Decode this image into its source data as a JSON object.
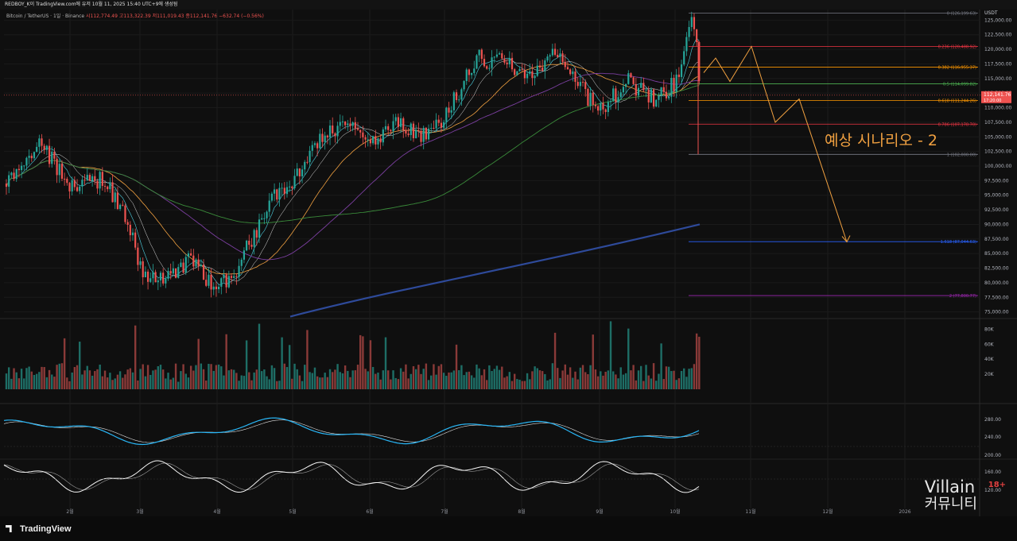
{
  "header": {
    "publish_text": "REDBOY_K이 TradingView.com에 유저 10월 11, 2025 15:40 UTC+9에 생성됨"
  },
  "legend": {
    "symbol": "Bitcoin / TetherUS · 1일 · Binance",
    "ohlc": "시112,774.49  고113,322.39  저111,019.43  종112,141.76  −632.74 (−0.56%)"
  },
  "currency": "USDT",
  "scenario_label": "예상 시나리오 - 2",
  "watermark": {
    "line1": "Villain",
    "line2": "커뮤니티",
    "age": "18+"
  },
  "footer_logo": "TradingView",
  "colors": {
    "up": "#26a69a",
    "down": "#ef5350",
    "scenario": "#f0a040",
    "ma200": "#2e4a9a"
  },
  "chart_data": {
    "type": "candlestick",
    "x_ticks": [
      "2월",
      "3월",
      "4월",
      "5월",
      "6월",
      "7월",
      "8월",
      "9월",
      "10월",
      "11월",
      "12월",
      "2026"
    ],
    "price_ticks": [
      "125,000.00",
      "122,500.00",
      "120,000.00",
      "117,500.00",
      "115,000.00",
      "112,500.00",
      "110,000.00",
      "107,500.00",
      "105,000.00",
      "102,500.00",
      "100,000.00",
      "97,500.00",
      "95,000.00",
      "92,500.00",
      "90,000.00",
      "87,500.00",
      "85,000.00",
      "82,500.00",
      "80,000.00",
      "77,500.00",
      "75,000.00"
    ],
    "price_range": [
      74000,
      126000
    ],
    "last_price": "112,141.76",
    "countdown": "17:20:00",
    "closes_monthly": [
      {
        "x": "2월",
        "close": 96000
      },
      {
        "x": "3월",
        "close": 82500
      },
      {
        "x": "4월",
        "close": 94000
      },
      {
        "x": "5월",
        "close": 104500
      },
      {
        "x": "6월",
        "close": 107000
      },
      {
        "x": "7월",
        "close": 118000
      },
      {
        "x": "8월",
        "close": 108500
      },
      {
        "x": "9월",
        "close": 114000
      },
      {
        "x": "10월",
        "close": 112141.76
      }
    ],
    "fib_levels": [
      {
        "ratio": "0",
        "label": "0 (126,199.63)",
        "price": 126199.63,
        "color": "#787b86"
      },
      {
        "ratio": "0.236",
        "label": "0.236 (120,488.92)",
        "price": 120488.92,
        "color": "#f23645"
      },
      {
        "ratio": "0.382",
        "label": "0.382 (116,955.37)",
        "price": 116955.37,
        "color": "#ff9800"
      },
      {
        "ratio": "0.5",
        "label": "0.5 (114,099.82)",
        "price": 114099.82,
        "color": "#4caf50"
      },
      {
        "ratio": "0.618",
        "label": "0.618 (111,244.26)",
        "price": 111244.26,
        "color": "#ff9800"
      },
      {
        "ratio": "0.786",
        "label": "0.786 (107,178.70)",
        "price": 107178.7,
        "color": "#f23645"
      },
      {
        "ratio": "1",
        "label": "1 (102,000.00)",
        "price": 102000.0,
        "color": "#787b86"
      },
      {
        "ratio": "1.618",
        "label": "1.618 (87,044.63)",
        "price": 87044.63,
        "color": "#2962ff"
      },
      {
        "ratio": "2",
        "label": "2 (77,800.77)",
        "price": 77800.77,
        "color": "#9c27b0"
      }
    ],
    "volume_ticks": [
      "80K",
      "60K",
      "40K",
      "20K"
    ],
    "osc1_ticks": [
      "280.00",
      "240.00"
    ],
    "osc2_ticks": [
      "200.00",
      "160.00",
      "120.00"
    ],
    "scenario_path": [
      116000,
      118500,
      114500,
      120500,
      107500,
      111500,
      87000
    ],
    "grid": true
  }
}
